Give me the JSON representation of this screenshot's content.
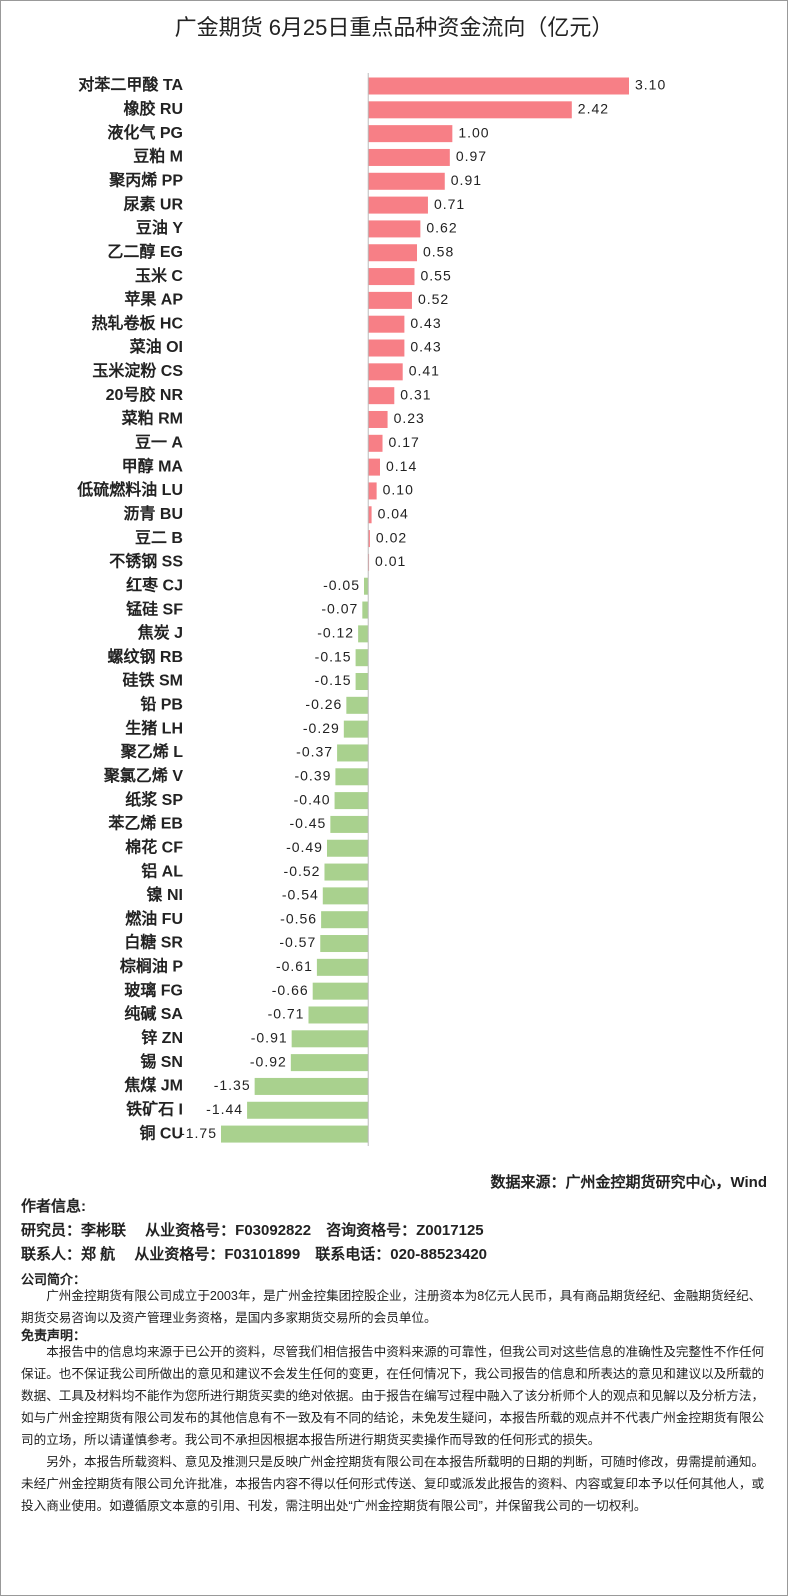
{
  "chart_data": {
    "type": "hbar",
    "title": "广金期货 6月25日重点品种资金流向（亿元）",
    "categories": [
      "对苯二甲酸 TA",
      "橡胶 RU",
      "液化气 PG",
      "豆粕 M",
      "聚丙烯 PP",
      "尿素 UR",
      "豆油 Y",
      "乙二醇 EG",
      "玉米 C",
      "苹果 AP",
      "热轧卷板 HC",
      "菜油 OI",
      "玉米淀粉 CS",
      "20号胶 NR",
      "菜粕 RM",
      "豆一 A",
      "甲醇 MA",
      "低硫燃料油 LU",
      "沥青 BU",
      "豆二 B",
      "不锈钢 SS",
      "红枣 CJ",
      "锰硅 SF",
      "焦炭 J",
      "螺纹钢 RB",
      "硅铁 SM",
      "铅 PB",
      "生猪 LH",
      "聚乙烯 L",
      "聚氯乙烯 V",
      "纸浆 SP",
      "苯乙烯 EB",
      "棉花 CF",
      "铝 AL",
      "镍 NI",
      "燃油 FU",
      "白糖 SR",
      "棕榈油 P",
      "玻璃 FG",
      "纯碱 SA",
      "锌 ZN",
      "锡 SN",
      "焦煤 JM",
      "铁矿石 I",
      "铜 CU"
    ],
    "values": [
      3.1,
      2.42,
      1,
      0.97,
      0.91,
      0.71,
      0.62,
      0.58,
      0.55,
      0.52,
      0.43,
      0.43,
      0.41,
      0.31,
      0.23,
      0.17,
      0.14,
      0.1,
      0.04,
      0.02,
      0.01,
      -0.05,
      -0.07,
      -0.12,
      -0.15,
      -0.15,
      -0.26,
      -0.29,
      -0.37,
      -0.39,
      -0.4,
      -0.45,
      -0.49,
      -0.52,
      -0.54,
      -0.56,
      -0.57,
      -0.61,
      -0.66,
      -0.71,
      -0.91,
      -0.92,
      -1.35,
      -1.44,
      -1.75
    ],
    "value_labels": [
      "3.10",
      "2.42",
      "1.00",
      "0.97",
      "0.91",
      "0.71",
      "0.62",
      "0.58",
      "0.55",
      "0.52",
      "0.43",
      "0.43",
      "0.41",
      "0.31",
      "0.23",
      "0.17",
      "0.14",
      "0.10",
      "0.04",
      "0.02",
      "0.01",
      "-0.05",
      "-0.07",
      "-0.12",
      "-0.15",
      "-0.15",
      "-0.26",
      "-0.29",
      "-0.37",
      "-0.39",
      "-0.40",
      "-0.45",
      "-0.49",
      "-0.52",
      "-0.54",
      "-0.56",
      "-0.57",
      "-0.61",
      "-0.66",
      "-0.71",
      "-0.91",
      "-0.92",
      "-1.35",
      "-1.44",
      "-1.75"
    ],
    "positive_color": "#f77f86",
    "negative_color": "#a9d18e",
    "xlim": [
      -1.75,
      3.1
    ]
  },
  "source": "数据来源：广州金控期货研究中心，Wind",
  "author": {
    "heading": "作者信息:",
    "line1": "研究员：李彬联　 从业资格号：F03092822　咨询资格号：Z0017125",
    "line2": "联系人：郑 航　 从业资格号：F03101899　联系电话：020-88523420"
  },
  "company": {
    "heading": "公司简介：",
    "text": "广州金控期货有限公司成立于2003年，是广州金控集团控股企业，注册资本为8亿元人民币，具有商品期货经纪、金融期货经纪、期货交易咨询以及资产管理业务资格，是国内多家期货交易所的会员单位。"
  },
  "disclaimer": {
    "heading": "免责声明：",
    "paragraphs": [
      "本报告中的信息均来源于已公开的资料，尽管我们相信报告中资料来源的可靠性，但我公司对这些信息的准确性及完整性不作任何保证。也不保证我公司所做出的意见和建议不会发生任何的变更，在任何情况下，我公司报告的信息和所表达的意见和建议以及所载的数据、工具及材料均不能作为您所进行期货买卖的绝对依据。由于报告在编写过程中融入了该分析师个人的观点和见解以及分析方法，如与广州金控期货有限公司发布的其他信息有不一致及有不同的结论，未免发生疑问，本报告所载的观点并不代表广州金控期货有限公司的立场，所以请谨慎参考。我公司不承担因根据本报告所进行期货买卖操作而导致的任何形式的损失。",
      "另外，本报告所载资料、意见及推测只是反映广州金控期货有限公司在本报告所载明的日期的判断，可随时修改，毋需提前通知。未经广州金控期货有限公司允许批准，本报告内容不得以任何形式传送、复印或派发此报告的资料、内容或复印本予以任何其他人，或投入商业使用。如遵循原文本意的引用、刊发，需注明出处“广州金控期货有限公司”，并保留我公司的一切权利。"
    ]
  }
}
